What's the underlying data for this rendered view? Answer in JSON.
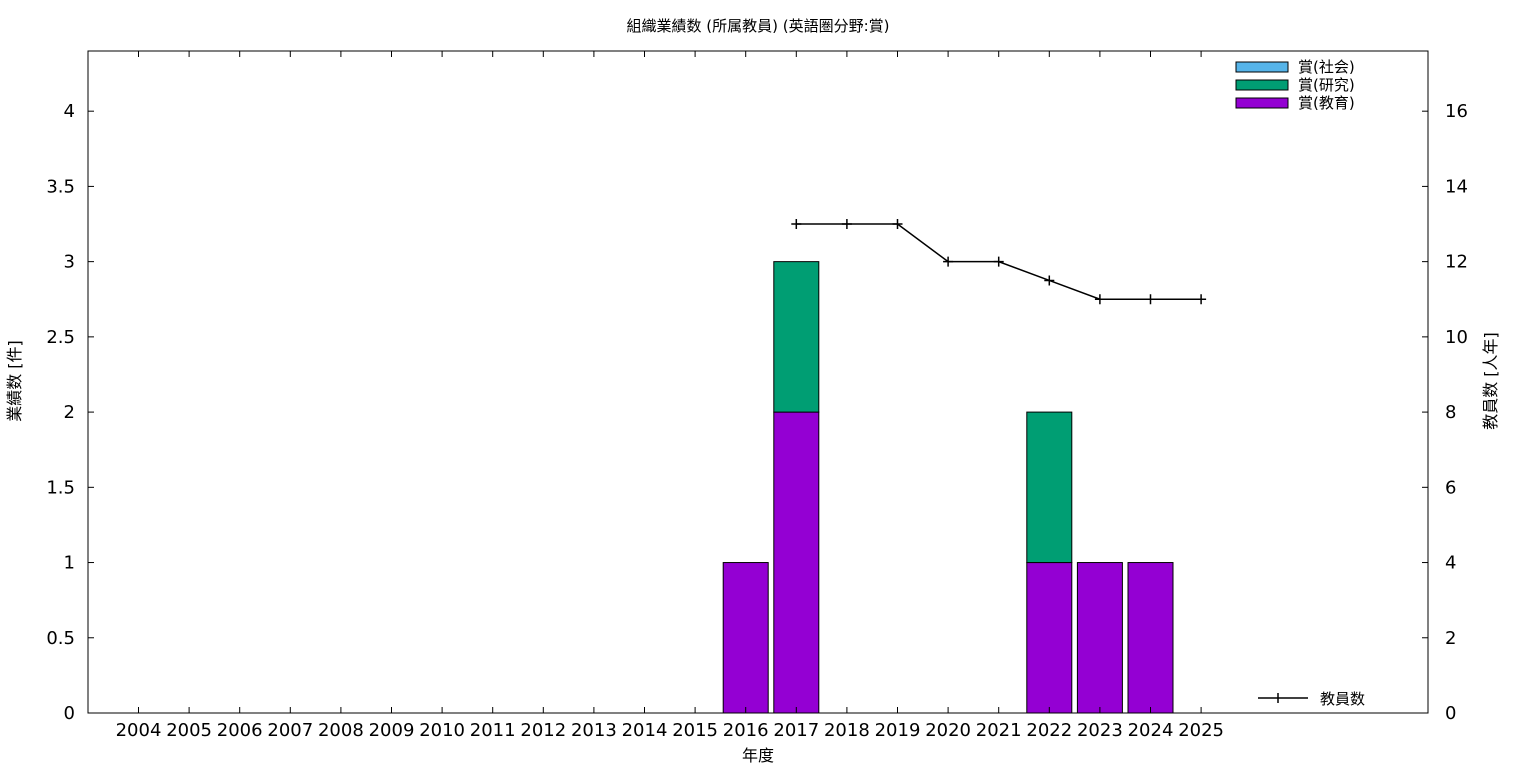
{
  "chart_data": {
    "type": "bar",
    "title": "組織業績数 (所属教員) (英語圏分野:賞)",
    "xlabel": "年度",
    "ylabel": "業績数 [件]",
    "y2label": "教員数 [人年]",
    "categories": [
      "2004",
      "2005",
      "2006",
      "2007",
      "2008",
      "2009",
      "2010",
      "2011",
      "2012",
      "2013",
      "2014",
      "2015",
      "2016",
      "2017",
      "2018",
      "2019",
      "2020",
      "2021",
      "2022",
      "2023",
      "2024",
      "2025"
    ],
    "ylim": [
      0,
      4.4
    ],
    "y2lim": [
      0,
      17.6
    ],
    "yticks": [
      "0",
      "0.5",
      "1",
      "1.5",
      "2",
      "2.5",
      "3",
      "3.5",
      "4"
    ],
    "y2ticks": [
      "0",
      "2",
      "4",
      "6",
      "8",
      "10",
      "12",
      "14",
      "16"
    ],
    "stacked": true,
    "series": [
      {
        "name": "賞(教育)",
        "color": "#9400d3",
        "values": [
          0,
          0,
          0,
          0,
          0,
          0,
          0,
          0,
          0,
          0,
          0,
          0,
          1,
          2,
          0,
          0,
          0,
          0,
          1,
          1,
          1,
          0
        ]
      },
      {
        "name": "賞(研究)",
        "color": "#009e73",
        "values": [
          0,
          0,
          0,
          0,
          0,
          0,
          0,
          0,
          0,
          0,
          0,
          0,
          0,
          1,
          0,
          0,
          0,
          0,
          1,
          0,
          0,
          0
        ]
      },
      {
        "name": "賞(社会)",
        "color": "#56b4e9",
        "values": [
          0,
          0,
          0,
          0,
          0,
          0,
          0,
          0,
          0,
          0,
          0,
          0,
          0,
          0,
          0,
          0,
          0,
          0,
          0,
          0,
          0,
          0
        ]
      }
    ],
    "line": {
      "name": "教員数",
      "axis": "right",
      "x": [
        "2017",
        "2018",
        "2019",
        "2020",
        "2021",
        "2022",
        "2023",
        "2024",
        "2025"
      ],
      "values": [
        13,
        13,
        13,
        12,
        12,
        11.5,
        11,
        11,
        11
      ]
    },
    "legend_order": [
      "賞(社会)",
      "賞(研究)",
      "賞(教育)"
    ],
    "legend_position": "top-right",
    "line_legend_position": "bottom-right",
    "grid": false
  }
}
